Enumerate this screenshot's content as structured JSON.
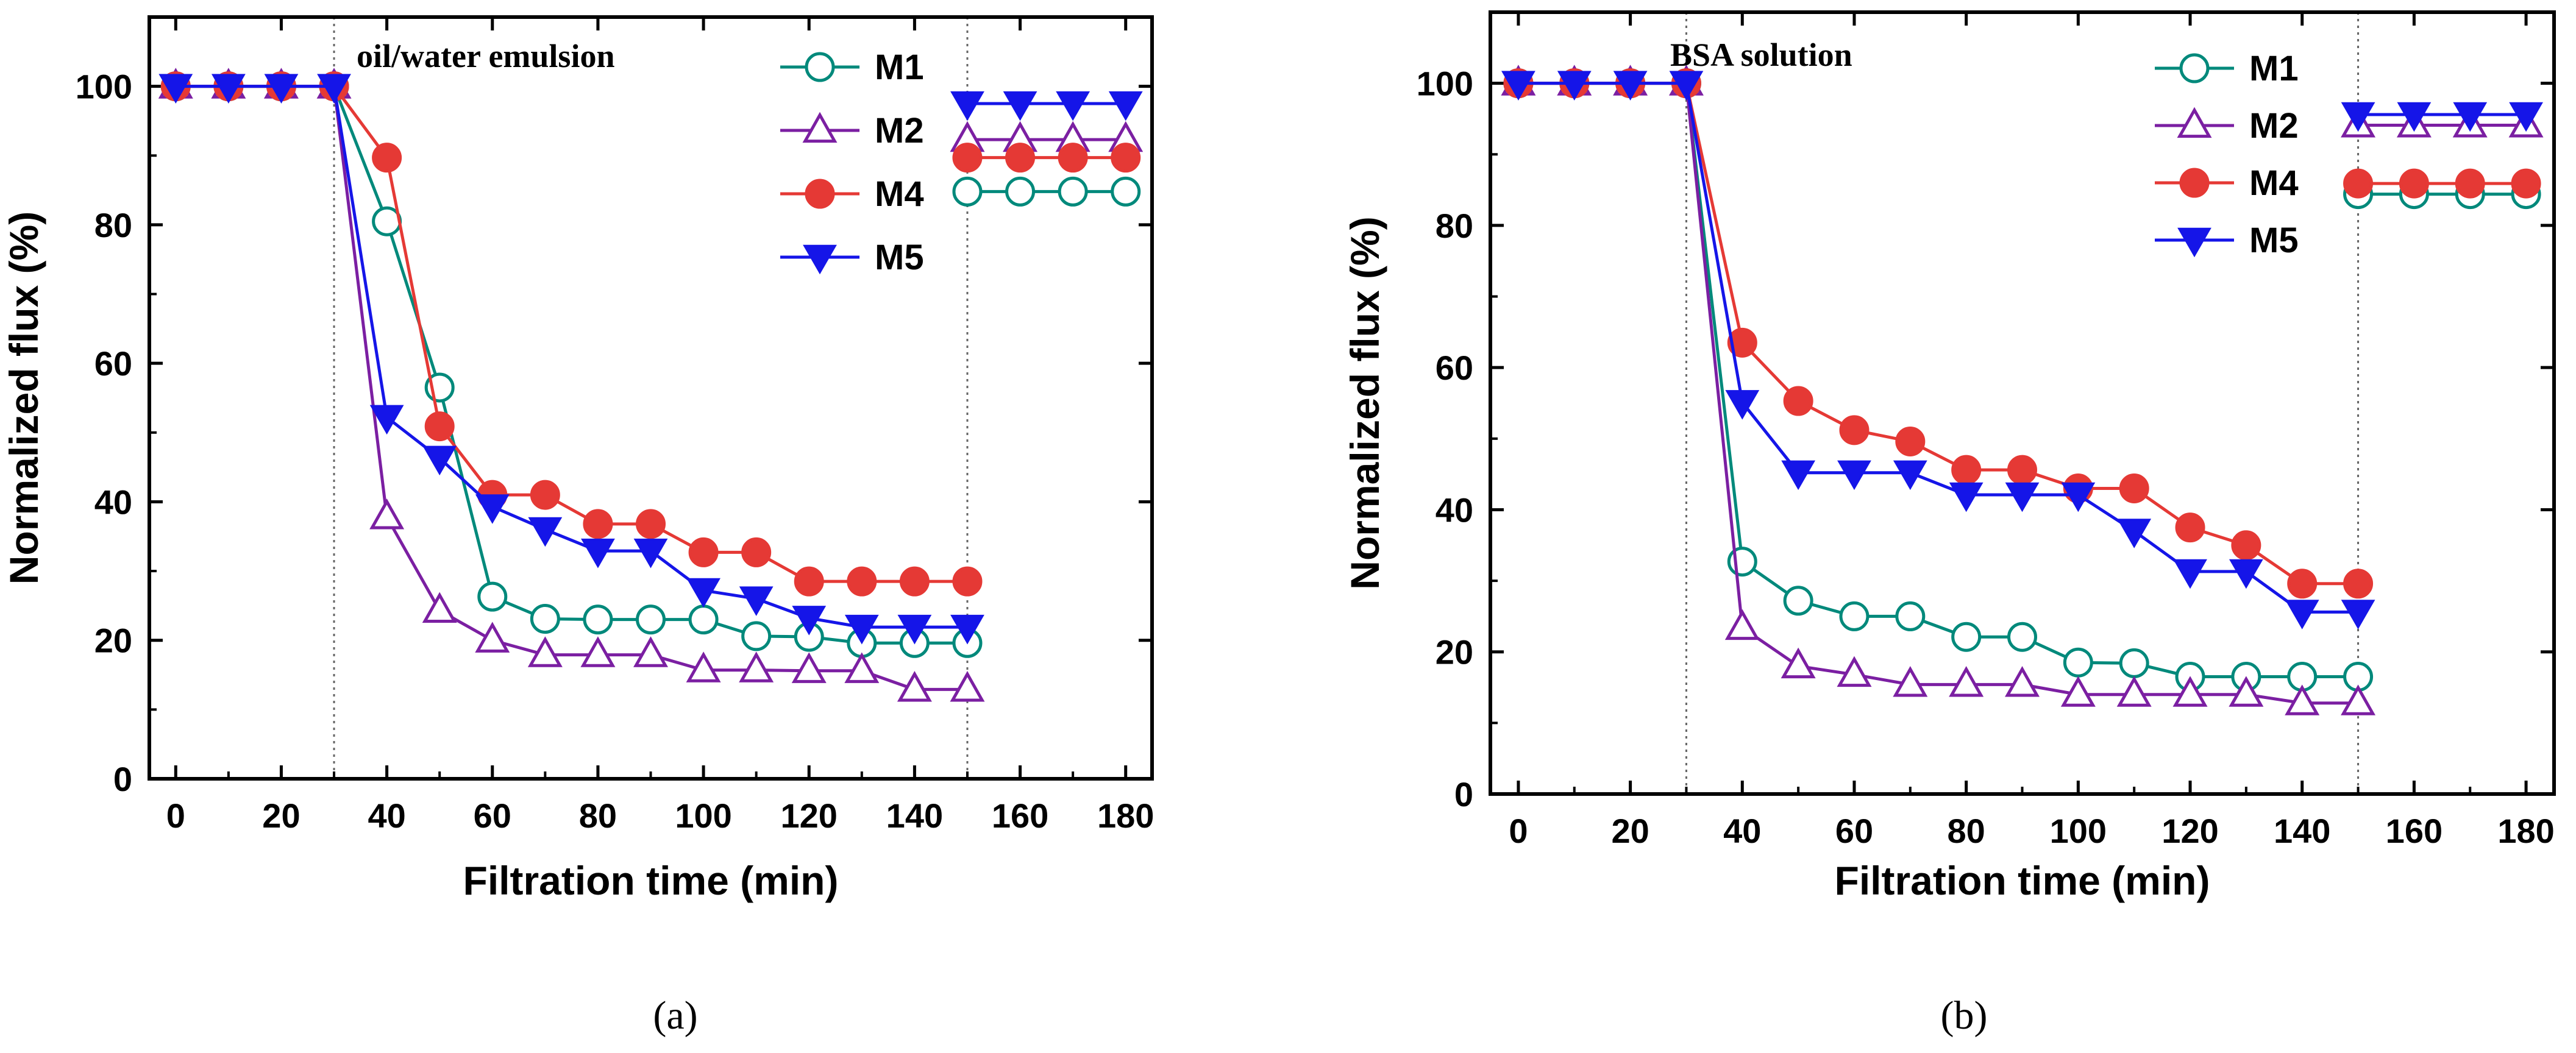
{
  "figure": {
    "panel_labels": [
      "(a)",
      "(b)"
    ]
  },
  "chart_data": [
    {
      "type": "line",
      "panel": "a",
      "annotation": "oil/water emulsion",
      "xlabel": "Filtration time (min)",
      "ylabel": "Normalized flux (%)",
      "xlim": [
        -5,
        185
      ],
      "ylim": [
        0,
        110
      ],
      "xticks": [
        0,
        20,
        40,
        60,
        80,
        100,
        120,
        140,
        160,
        180
      ],
      "yticks": [
        0,
        20,
        40,
        60,
        80,
        100
      ],
      "vlines": [
        30,
        150
      ],
      "series": [
        {
          "name": "M1",
          "color": "#00897b",
          "marker": "circle-open",
          "segments": [
            {
              "x": [
                0,
                10,
                20,
                30,
                40,
                50,
                60,
                70,
                80,
                90,
                100,
                110,
                120,
                130,
                140,
                150
              ],
              "y": [
                100,
                100,
                100,
                100,
                80.5,
                56.5,
                26.3,
                23.1,
                23.0,
                23.0,
                23.0,
                20.6,
                20.5,
                19.6,
                19.6,
                19.6
              ]
            },
            {
              "x": [
                150,
                160,
                170,
                180
              ],
              "y": [
                84.8,
                84.8,
                84.8,
                84.8
              ]
            }
          ]
        },
        {
          "name": "M2",
          "color": "#7b1fa2",
          "marker": "triangle-up-open",
          "segments": [
            {
              "x": [
                0,
                10,
                20,
                30,
                40,
                50,
                60,
                70,
                80,
                90,
                100,
                110,
                120,
                130,
                140,
                150
              ],
              "y": [
                100,
                100,
                100,
                100,
                37.8,
                24.3,
                20.0,
                17.9,
                17.9,
                17.9,
                15.7,
                15.7,
                15.6,
                15.6,
                12.9,
                12.9
              ]
            },
            {
              "x": [
                150,
                160,
                170,
                180
              ],
              "y": [
                92.3,
                92.3,
                92.3,
                92.3
              ]
            }
          ]
        },
        {
          "name": "M4",
          "color": "#e53935",
          "marker": "circle-filled",
          "segments": [
            {
              "x": [
                0,
                10,
                20,
                30,
                40,
                50,
                60,
                70,
                80,
                90,
                100,
                110,
                120,
                130,
                140,
                150
              ],
              "y": [
                100,
                100,
                100,
                100,
                89.7,
                50.9,
                41.0,
                41.0,
                36.8,
                36.8,
                32.7,
                32.7,
                28.5,
                28.5,
                28.5,
                28.5
              ]
            },
            {
              "x": [
                150,
                160,
                170,
                180
              ],
              "y": [
                89.7,
                89.7,
                89.7,
                89.7
              ]
            }
          ]
        },
        {
          "name": "M5",
          "color": "#1515e8",
          "marker": "triangle-down-filled",
          "segments": [
            {
              "x": [
                0,
                10,
                20,
                30,
                40,
                50,
                60,
                70,
                80,
                90,
                100,
                110,
                120,
                130,
                140,
                150
              ],
              "y": [
                100,
                100,
                100,
                100,
                52.2,
                46.3,
                39.3,
                36.0,
                32.9,
                32.9,
                27.2,
                26.0,
                23.2,
                21.9,
                21.9,
                21.9
              ]
            },
            {
              "x": [
                150,
                160,
                170,
                180
              ],
              "y": [
                97.5,
                97.5,
                97.5,
                97.5
              ]
            }
          ]
        }
      ]
    },
    {
      "type": "line",
      "panel": "b",
      "annotation": "BSA solution",
      "xlabel": "Filtration time (min)",
      "ylabel": "Normalized flux (%)",
      "xlim": [
        -5,
        185
      ],
      "ylim": [
        0,
        110
      ],
      "xticks": [
        0,
        20,
        40,
        60,
        80,
        100,
        120,
        140,
        160,
        180
      ],
      "yticks": [
        0,
        20,
        40,
        60,
        80,
        100
      ],
      "vlines": [
        30,
        150
      ],
      "series": [
        {
          "name": "M1",
          "color": "#00897b",
          "marker": "circle-open",
          "segments": [
            {
              "x": [
                0,
                10,
                20,
                30,
                40,
                50,
                60,
                70,
                80,
                90,
                100,
                110,
                120,
                130,
                140,
                150
              ],
              "y": [
                100,
                100,
                100,
                100,
                32.7,
                27.2,
                25.0,
                25.0,
                22.1,
                22.1,
                18.5,
                18.4,
                16.5,
                16.5,
                16.5,
                16.5
              ]
            },
            {
              "x": [
                150,
                160,
                170,
                180
              ],
              "y": [
                84.4,
                84.4,
                84.4,
                84.4
              ]
            }
          ]
        },
        {
          "name": "M2",
          "color": "#7b1fa2",
          "marker": "triangle-up-open",
          "segments": [
            {
              "x": [
                0,
                10,
                20,
                30,
                40,
                50,
                60,
                70,
                80,
                90,
                100,
                110,
                120,
                130,
                140,
                150
              ],
              "y": [
                100,
                100,
                100,
                100,
                23.4,
                18.0,
                16.8,
                15.4,
                15.4,
                15.4,
                14.0,
                14.0,
                14.0,
                14.0,
                12.8,
                12.8
              ]
            },
            {
              "x": [
                150,
                160,
                170,
                180
              ],
              "y": [
                94.1,
                94.1,
                94.1,
                94.1
              ]
            }
          ]
        },
        {
          "name": "M4",
          "color": "#e53935",
          "marker": "circle-filled",
          "segments": [
            {
              "x": [
                0,
                10,
                20,
                30,
                40,
                50,
                60,
                70,
                80,
                90,
                100,
                110,
                120,
                130,
                140,
                150
              ],
              "y": [
                100,
                100,
                100,
                100,
                63.5,
                55.3,
                51.2,
                49.6,
                45.6,
                45.6,
                43.0,
                43.0,
                37.5,
                35.0,
                29.6,
                29.6
              ]
            },
            {
              "x": [
                150,
                160,
                170,
                180
              ],
              "y": [
                85.9,
                85.9,
                85.9,
                85.9
              ]
            }
          ]
        },
        {
          "name": "M5",
          "color": "#1515e8",
          "marker": "triangle-down-filled",
          "segments": [
            {
              "x": [
                0,
                10,
                20,
                30,
                40,
                50,
                60,
                70,
                80,
                90,
                100,
                110,
                120,
                130,
                140,
                150
              ],
              "y": [
                100,
                100,
                100,
                100,
                55.1,
                45.2,
                45.2,
                45.2,
                42.1,
                42.1,
                42.1,
                37.0,
                31.3,
                31.3,
                25.6,
                25.6
              ]
            },
            {
              "x": [
                150,
                160,
                170,
                180
              ],
              "y": [
                95.6,
                95.6,
                95.6,
                95.6
              ]
            }
          ]
        }
      ]
    }
  ]
}
